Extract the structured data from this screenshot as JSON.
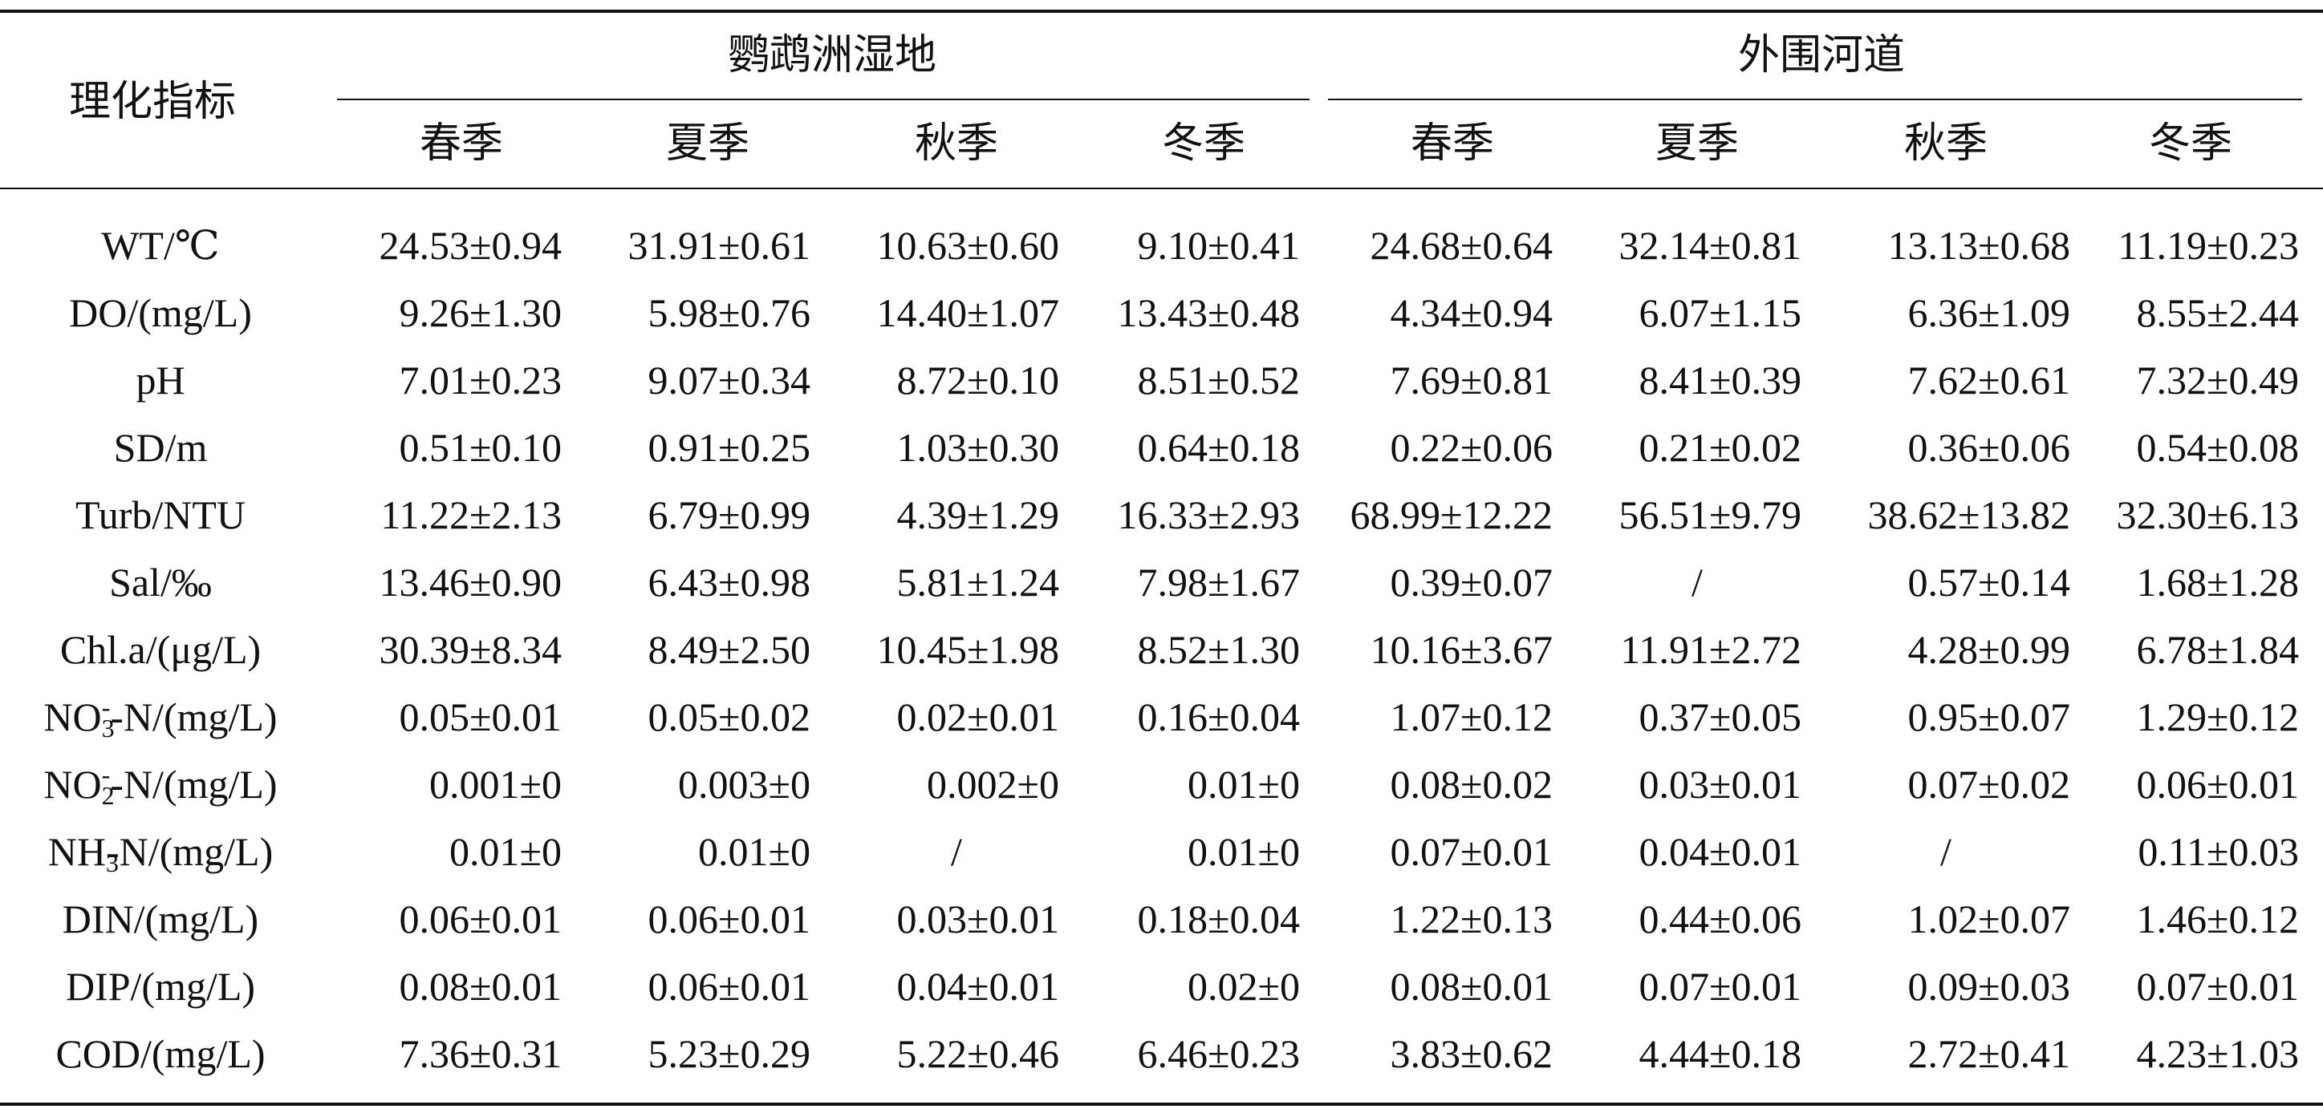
{
  "table": {
    "corner": "理化指标",
    "groups": [
      "鹦鹉洲湿地",
      "外围河道"
    ],
    "seasons": [
      "春季",
      "夏季",
      "秋季",
      "冬季",
      "春季",
      "夏季",
      "秋季",
      "冬季"
    ],
    "rows": [
      {
        "label": "WT/℃",
        "values": [
          "24.53±0.94",
          "31.91±0.61",
          "10.63±0.60",
          "9.10±0.41",
          "24.68±0.64",
          "32.14±0.81",
          "13.13±0.68",
          "11.19±0.23"
        ]
      },
      {
        "label": "DO/(mg/L)",
        "values": [
          "9.26±1.30",
          "5.98±0.76",
          "14.40±1.07",
          "13.43±0.48",
          "4.34±0.94",
          "6.07±1.15",
          "6.36±1.09",
          "8.55±2.44"
        ]
      },
      {
        "label": "pH",
        "values": [
          "7.01±0.23",
          "9.07±0.34",
          "8.72±0.10",
          "8.51±0.52",
          "7.69±0.81",
          "8.41±0.39",
          "7.62±0.61",
          "7.32±0.49"
        ]
      },
      {
        "label": "SD/m",
        "values": [
          "0.51±0.10",
          "0.91±0.25",
          "1.03±0.30",
          "0.64±0.18",
          "0.22±0.06",
          "0.21±0.02",
          "0.36±0.06",
          "0.54±0.08"
        ]
      },
      {
        "label": "Turb/NTU",
        "values": [
          "11.22±2.13",
          "6.79±0.99",
          "4.39±1.29",
          "16.33±2.93",
          "68.99±12.22",
          "56.51±9.79",
          "38.62±13.82",
          "32.30±6.13"
        ]
      },
      {
        "label": "Sal/‰",
        "values": [
          "13.46±0.90",
          "6.43±0.98",
          "5.81±1.24",
          "7.98±1.67",
          "0.39±0.07",
          "/",
          "0.57±0.14",
          "1.68±1.28"
        ]
      },
      {
        "label": "Chl.a/(μg/L)",
        "values": [
          "30.39±8.34",
          "8.49±2.50",
          "10.45±1.98",
          "8.52±1.30",
          "10.16±3.67",
          "11.91±2.72",
          "4.28±0.99",
          "6.78±1.84"
        ]
      },
      {
        "label_pre": "NO",
        "label_sub": "3",
        "label_sup": "-",
        "label_post": "-N/(mg/L)",
        "values": [
          "0.05±0.01",
          "0.05±0.02",
          "0.02±0.01",
          "0.16±0.04",
          "1.07±0.12",
          "0.37±0.05",
          "0.95±0.07",
          "1.29±0.12"
        ]
      },
      {
        "label_pre": "NO",
        "label_sub": "2",
        "label_sup": "-",
        "label_post": "-N/(mg/L)",
        "values": [
          "0.001±0",
          "0.003±0",
          "0.002±0",
          "0.01±0",
          "0.08±0.02",
          "0.03±0.01",
          "0.07±0.02",
          "0.06±0.01"
        ]
      },
      {
        "label_pre": "NH",
        "label_sub": "3",
        "label_sup": "",
        "label_post": "-N/(mg/L)",
        "values": [
          "0.01±0",
          "0.01±0",
          "/",
          "0.01±0",
          "0.07±0.01",
          "0.04±0.01",
          "/",
          "0.11±0.03"
        ]
      },
      {
        "label": "DIN/(mg/L)",
        "values": [
          "0.06±0.01",
          "0.06±0.01",
          "0.03±0.01",
          "0.18±0.04",
          "1.22±0.13",
          "0.44±0.06",
          "1.02±0.07",
          "1.46±0.12"
        ]
      },
      {
        "label": "DIP/(mg/L)",
        "values": [
          "0.08±0.01",
          "0.06±0.01",
          "0.04±0.01",
          "0.02±0",
          "0.08±0.01",
          "0.07±0.01",
          "0.09±0.03",
          "0.07±0.01"
        ]
      },
      {
        "label": "COD/(mg/L)",
        "values": [
          "7.36±0.31",
          "5.23±0.29",
          "5.22±0.46",
          "6.46±0.23",
          "3.83±0.62",
          "4.44±0.18",
          "2.72±0.41",
          "4.23±1.03"
        ]
      }
    ]
  }
}
